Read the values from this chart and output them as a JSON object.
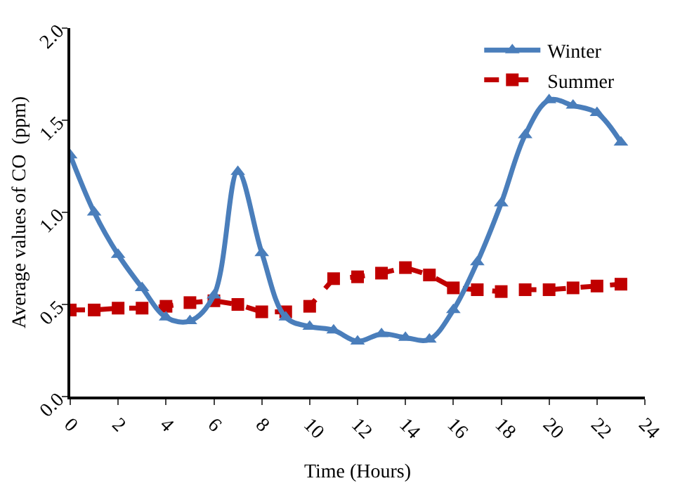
{
  "chart_data": {
    "type": "line",
    "xlabel": "Time (Hours)",
    "ylabel": "Average values of CO  (ppm)",
    "x": [
      0,
      1,
      2,
      3,
      4,
      5,
      6,
      7,
      8,
      9,
      10,
      11,
      12,
      13,
      14,
      15,
      16,
      17,
      18,
      19,
      20,
      21,
      22,
      23
    ],
    "series": [
      {
        "name": "Winter",
        "color": "#4a7ebb",
        "marker": "triangle",
        "line_style": "solid",
        "values": [
          1.31,
          1.0,
          0.77,
          0.59,
          0.43,
          0.41,
          0.55,
          1.22,
          0.78,
          0.43,
          0.38,
          0.36,
          0.3,
          0.34,
          0.32,
          0.31,
          0.47,
          0.73,
          1.05,
          1.42,
          1.61,
          1.58,
          1.54,
          1.38
        ]
      },
      {
        "name": "Summer",
        "color": "#c00000",
        "marker": "square",
        "line_style": "dashed",
        "values": [
          0.47,
          0.47,
          0.48,
          0.48,
          0.49,
          0.51,
          0.52,
          0.5,
          0.46,
          0.46,
          0.49,
          0.64,
          0.65,
          0.67,
          0.7,
          0.66,
          0.59,
          0.58,
          0.57,
          0.58,
          0.58,
          0.59,
          0.6,
          0.61
        ]
      }
    ],
    "xlim": [
      0,
      24
    ],
    "xticks": [
      0,
      2,
      4,
      6,
      8,
      10,
      12,
      14,
      16,
      18,
      20,
      22,
      24
    ],
    "ylim": [
      0,
      2.0
    ],
    "yticks": [
      {
        "value": 0,
        "label": "0.0"
      },
      {
        "value": 0.5,
        "label": "0.5"
      },
      {
        "value": 1.0,
        "label": "1.0"
      },
      {
        "value": 1.5,
        "label": "1.5"
      },
      {
        "value": 2.0,
        "label": "2.0"
      }
    ],
    "legend": "top right"
  }
}
